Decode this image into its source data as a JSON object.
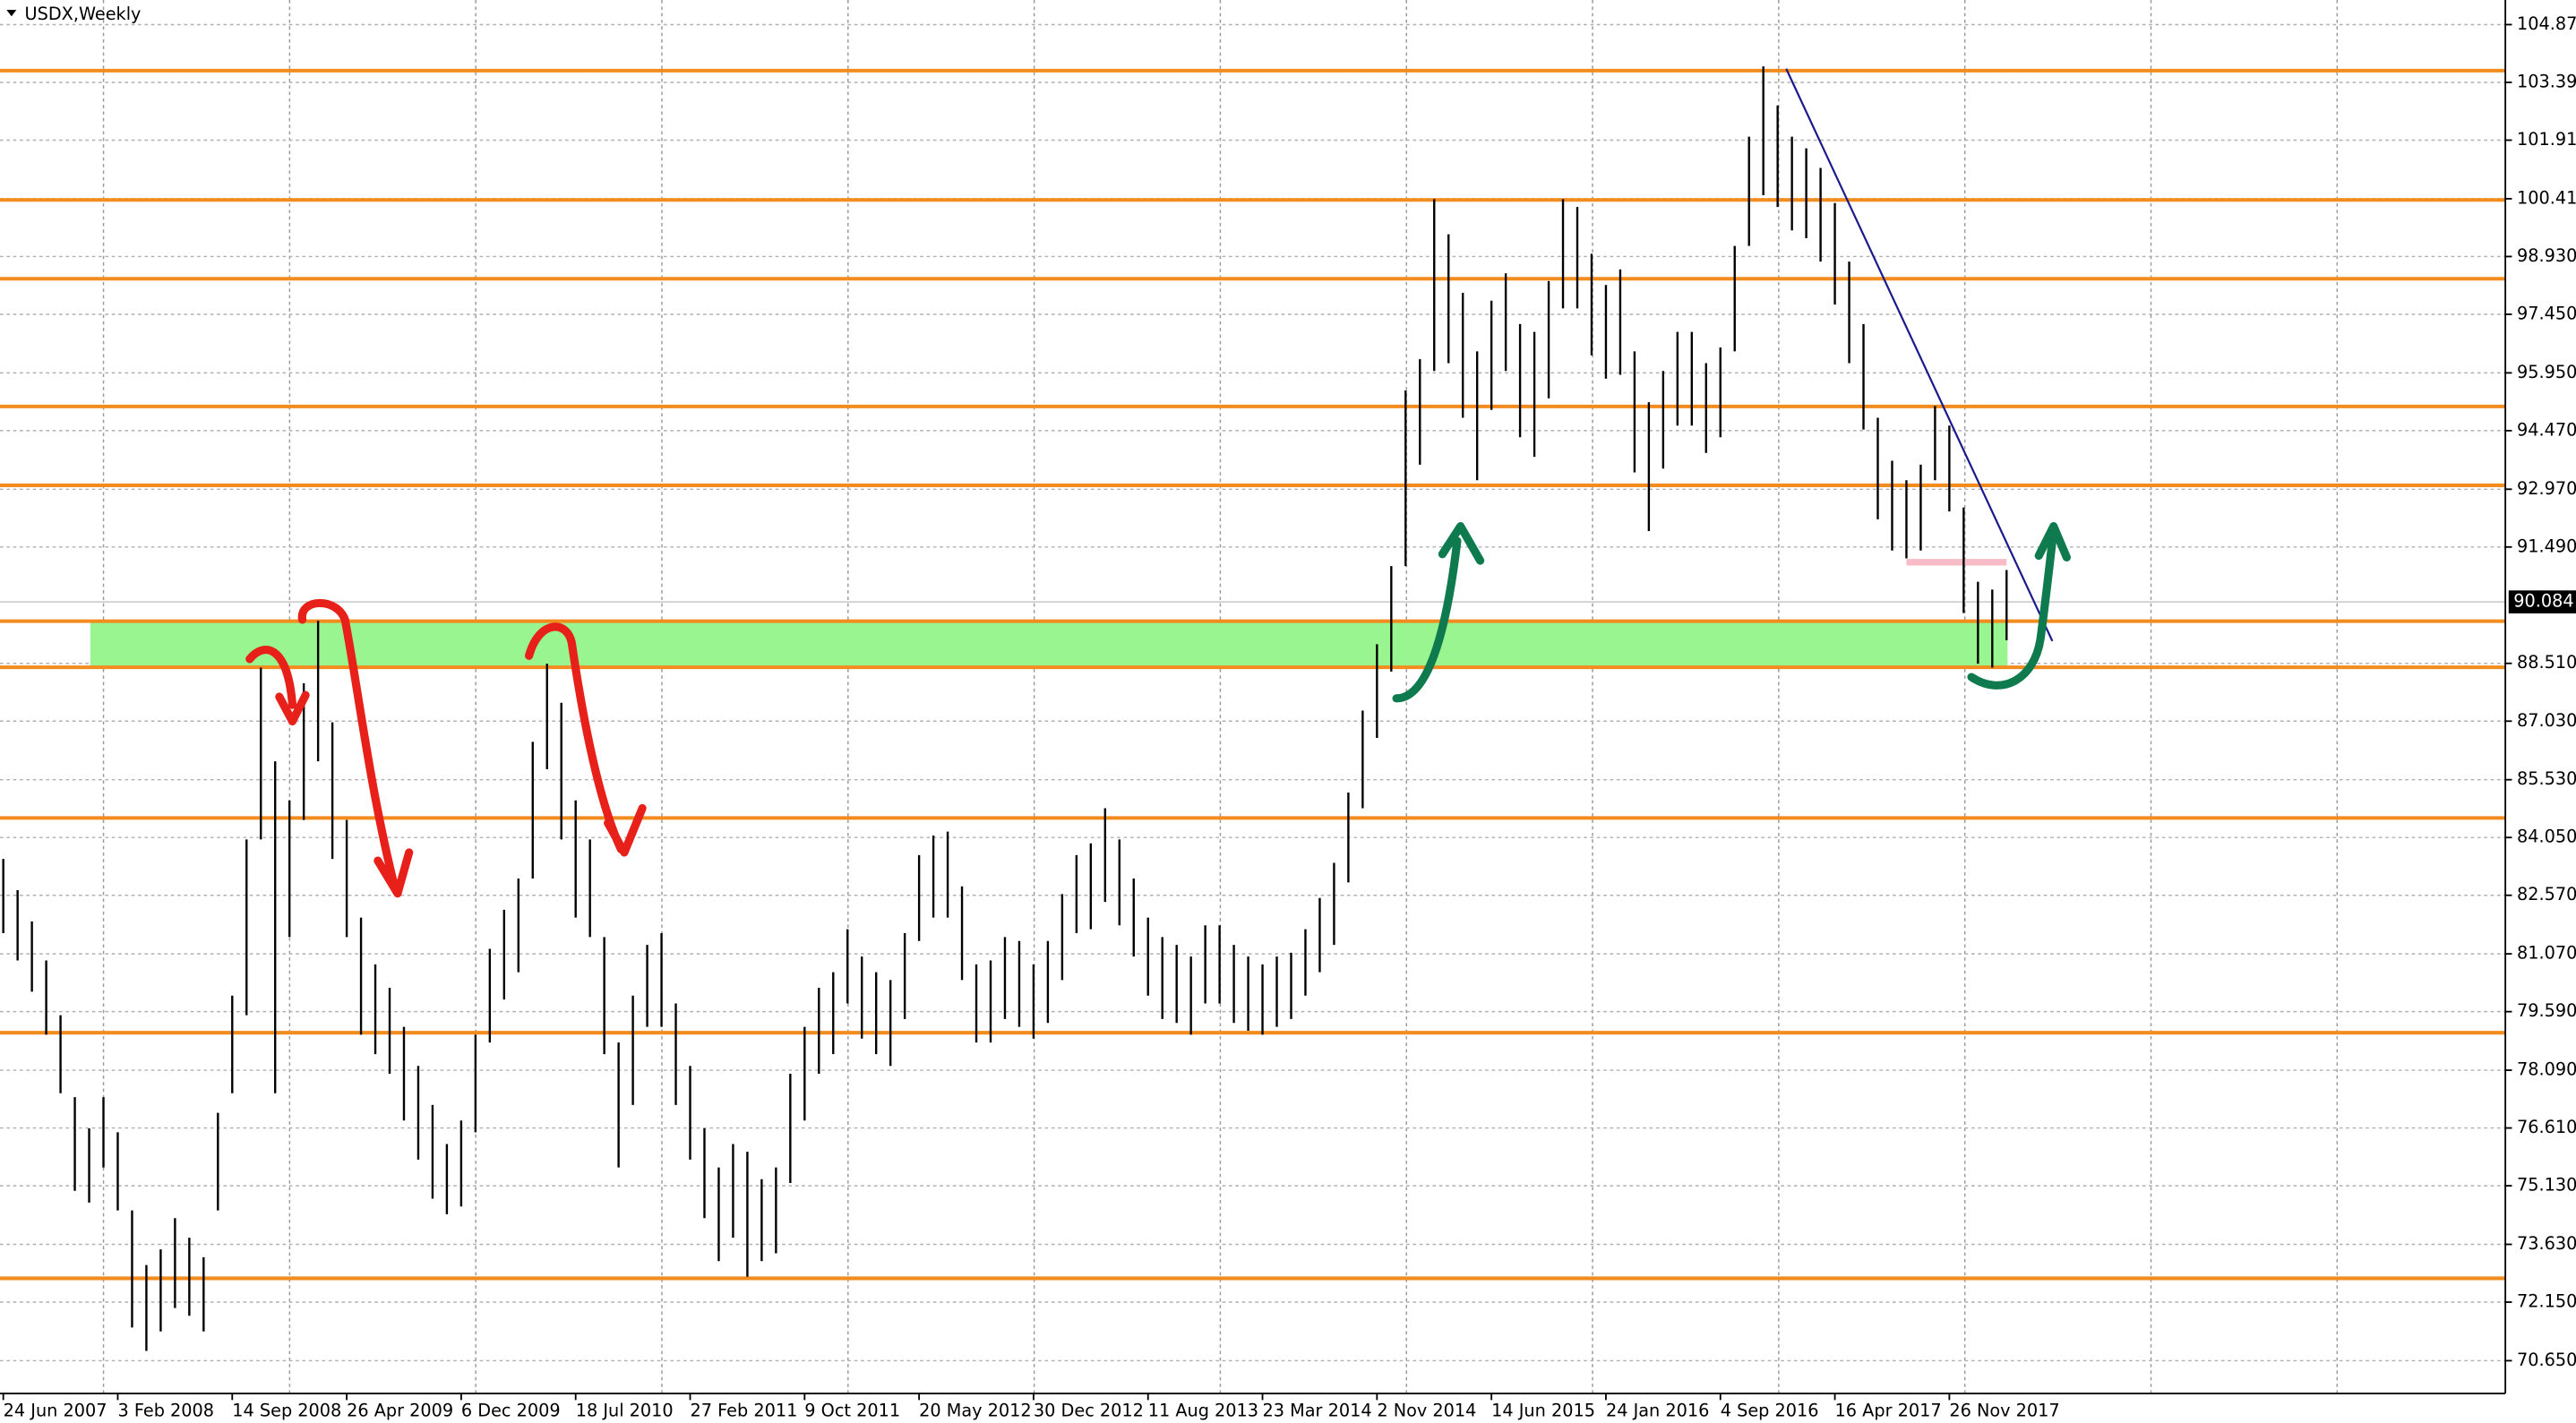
{
  "chart_data": {
    "type": "ohlc",
    "title": "USDX,Weekly",
    "categories": [
      "24 Jun 2007",
      null,
      null,
      null,
      null,
      null,
      null,
      null,
      "3 Feb 2008",
      null,
      null,
      null,
      null,
      null,
      null,
      null,
      "14 Sep 2008",
      null,
      null,
      null,
      null,
      null,
      null,
      null,
      "26 Apr 2009",
      null,
      null,
      null,
      null,
      null,
      null,
      null,
      "6 Dec 2009",
      null,
      null,
      null,
      null,
      null,
      null,
      null,
      "18 Jul 2010",
      null,
      null,
      null,
      null,
      null,
      null,
      null,
      "27 Feb 2011",
      null,
      null,
      null,
      null,
      null,
      null,
      null,
      "9 Oct 2011",
      null,
      null,
      null,
      null,
      null,
      null,
      null,
      "20 May 2012",
      null,
      null,
      null,
      null,
      null,
      null,
      null,
      "30 Dec 2012",
      null,
      null,
      null,
      null,
      null,
      null,
      null,
      "11 Aug 2013",
      null,
      null,
      null,
      null,
      null,
      null,
      null,
      "23 Mar 2014",
      null,
      null,
      null,
      null,
      null,
      null,
      null,
      "2 Nov 2014",
      null,
      null,
      null,
      null,
      null,
      null,
      null,
      "14 Jun 2015",
      null,
      null,
      null,
      null,
      null,
      null,
      null,
      "24 Jan 2016",
      null,
      null,
      null,
      null,
      null,
      null,
      null,
      "4 Sep 2016",
      null,
      null,
      null,
      null,
      null,
      null,
      null,
      "16 Apr 2017",
      null,
      null,
      null,
      null,
      null,
      null,
      null,
      "26 Nov 2017",
      null,
      null,
      null,
      null
    ],
    "high": [
      83.5,
      82.7,
      81.9,
      80.9,
      79.5,
      77.4,
      76.6,
      77.4,
      76.5,
      74.5,
      73.1,
      73.5,
      74.3,
      73.8,
      73.3,
      77.0,
      80.0,
      84.0,
      88.4,
      86.0,
      85.0,
      88.0,
      89.6,
      87.0,
      84.5,
      82.0,
      80.8,
      80.2,
      79.2,
      78.2,
      77.2,
      76.2,
      76.8,
      79.0,
      81.2,
      82.2,
      83.0,
      86.5,
      88.5,
      87.5,
      85.0,
      84.0,
      81.5,
      78.8,
      80.0,
      81.3,
      81.6,
      79.8,
      78.2,
      76.6,
      75.6,
      76.2,
      76.0,
      75.3,
      75.6,
      78.0,
      79.2,
      80.2,
      80.6,
      81.7,
      81.0,
      80.6,
      80.4,
      81.6,
      83.6,
      84.1,
      84.2,
      82.8,
      80.8,
      80.9,
      81.5,
      81.4,
      80.8,
      81.4,
      82.6,
      83.6,
      83.9,
      84.8,
      84.0,
      83.0,
      82.0,
      81.5,
      81.3,
      81.0,
      81.8,
      81.8,
      81.3,
      81.0,
      80.8,
      81.0,
      81.1,
      81.7,
      82.5,
      83.4,
      85.2,
      87.3,
      89.0,
      91.0,
      95.5,
      96.3,
      100.4,
      99.5,
      98.0,
      96.5,
      97.8,
      98.5,
      97.2,
      97.0,
      98.3,
      100.4,
      100.2,
      99.0,
      98.2,
      98.6,
      96.5,
      95.2,
      96.0,
      97.0,
      97.0,
      96.2,
      96.6,
      99.2,
      102.0,
      103.8,
      102.8,
      102.0,
      101.7,
      101.2,
      100.3,
      98.8,
      97.2,
      94.8,
      93.7,
      93.2,
      93.6,
      95.1,
      94.6,
      92.5,
      90.6,
      90.4,
      90.9
    ],
    "low": [
      81.6,
      80.9,
      80.1,
      79.0,
      77.5,
      75.0,
      74.7,
      75.6,
      74.5,
      71.5,
      70.9,
      71.4,
      72.0,
      71.8,
      71.4,
      74.5,
      77.5,
      79.5,
      84.0,
      77.5,
      81.5,
      84.5,
      86.0,
      83.5,
      81.5,
      79.0,
      78.5,
      78.0,
      76.8,
      75.8,
      74.8,
      74.4,
      74.6,
      76.5,
      78.8,
      79.9,
      80.6,
      83.0,
      85.8,
      84.0,
      82.0,
      81.5,
      78.5,
      75.6,
      77.2,
      79.2,
      79.2,
      77.2,
      75.8,
      74.3,
      73.2,
      73.8,
      72.8,
      73.2,
      73.4,
      75.2,
      76.8,
      78.0,
      78.5,
      79.8,
      78.9,
      78.5,
      78.2,
      79.4,
      81.4,
      82.0,
      82.0,
      80.4,
      78.8,
      78.8,
      79.4,
      79.2,
      78.9,
      79.3,
      80.4,
      81.6,
      81.7,
      82.4,
      81.8,
      81.0,
      80.0,
      79.4,
      79.3,
      79.0,
      79.8,
      79.8,
      79.3,
      79.1,
      79.0,
      79.2,
      79.4,
      80.0,
      80.6,
      81.3,
      82.9,
      84.8,
      86.6,
      88.3,
      91.0,
      93.6,
      96.0,
      96.2,
      94.8,
      93.2,
      95.0,
      96.0,
      94.3,
      93.8,
      95.3,
      97.6,
      97.6,
      96.4,
      95.8,
      95.9,
      93.4,
      91.9,
      93.5,
      94.6,
      94.6,
      93.9,
      94.3,
      96.5,
      99.2,
      100.5,
      100.2,
      99.6,
      99.4,
      98.8,
      97.7,
      96.2,
      94.5,
      92.2,
      91.4,
      91.2,
      91.4,
      93.2,
      92.4,
      89.8,
      88.5,
      88.4,
      89.1
    ],
    "color": "#000000",
    "ylim": [
      69.81,
      105.5
    ],
    "yticks": [
      {
        "value": 104.87,
        "label": "104.870"
      },
      {
        "value": 103.39,
        "label": "103.390"
      },
      {
        "value": 101.91,
        "label": "101.910"
      },
      {
        "value": 100.41,
        "label": "100.410"
      },
      {
        "value": 98.93,
        "label": "98.930"
      },
      {
        "value": 97.45,
        "label": "97.450"
      },
      {
        "value": 95.95,
        "label": "95.950"
      },
      {
        "value": 94.47,
        "label": "94.470"
      },
      {
        "value": 92.97,
        "label": "92.970"
      },
      {
        "value": 91.49,
        "label": "91.490"
      },
      {
        "value": 88.51,
        "label": "88.510"
      },
      {
        "value": 87.03,
        "label": "87.030"
      },
      {
        "value": 85.53,
        "label": "85.530"
      },
      {
        "value": 84.05,
        "label": "84.050"
      },
      {
        "value": 82.57,
        "label": "82.570"
      },
      {
        "value": 81.07,
        "label": "81.070"
      },
      {
        "value": 79.59,
        "label": "79.590"
      },
      {
        "value": 78.09,
        "label": "78.090"
      },
      {
        "value": 76.61,
        "label": "76.610"
      },
      {
        "value": 75.13,
        "label": "75.130"
      },
      {
        "value": 73.63,
        "label": "73.630"
      },
      {
        "value": 72.15,
        "label": "72.150"
      },
      {
        "value": 70.65,
        "label": "70.650"
      }
    ],
    "last_price": 90.084,
    "grid": true,
    "levels": [
      103.69,
      100.38,
      98.36,
      95.09,
      93.07,
      89.59,
      88.41,
      84.55,
      79.05,
      72.76
    ],
    "level_color": "#f28c1e",
    "zone": [
      88.41,
      89.59
    ],
    "zone_color": "#99f58f",
    "trendline": {
      "start": [
        124.6,
        103.74
      ],
      "end": [
        143.2,
        89.08
      ],
      "color": "#1a1a8c"
    },
    "support_mark": {
      "value": 91.1,
      "start": 133,
      "end": 140,
      "color": "#f7bcc6"
    }
  }
}
